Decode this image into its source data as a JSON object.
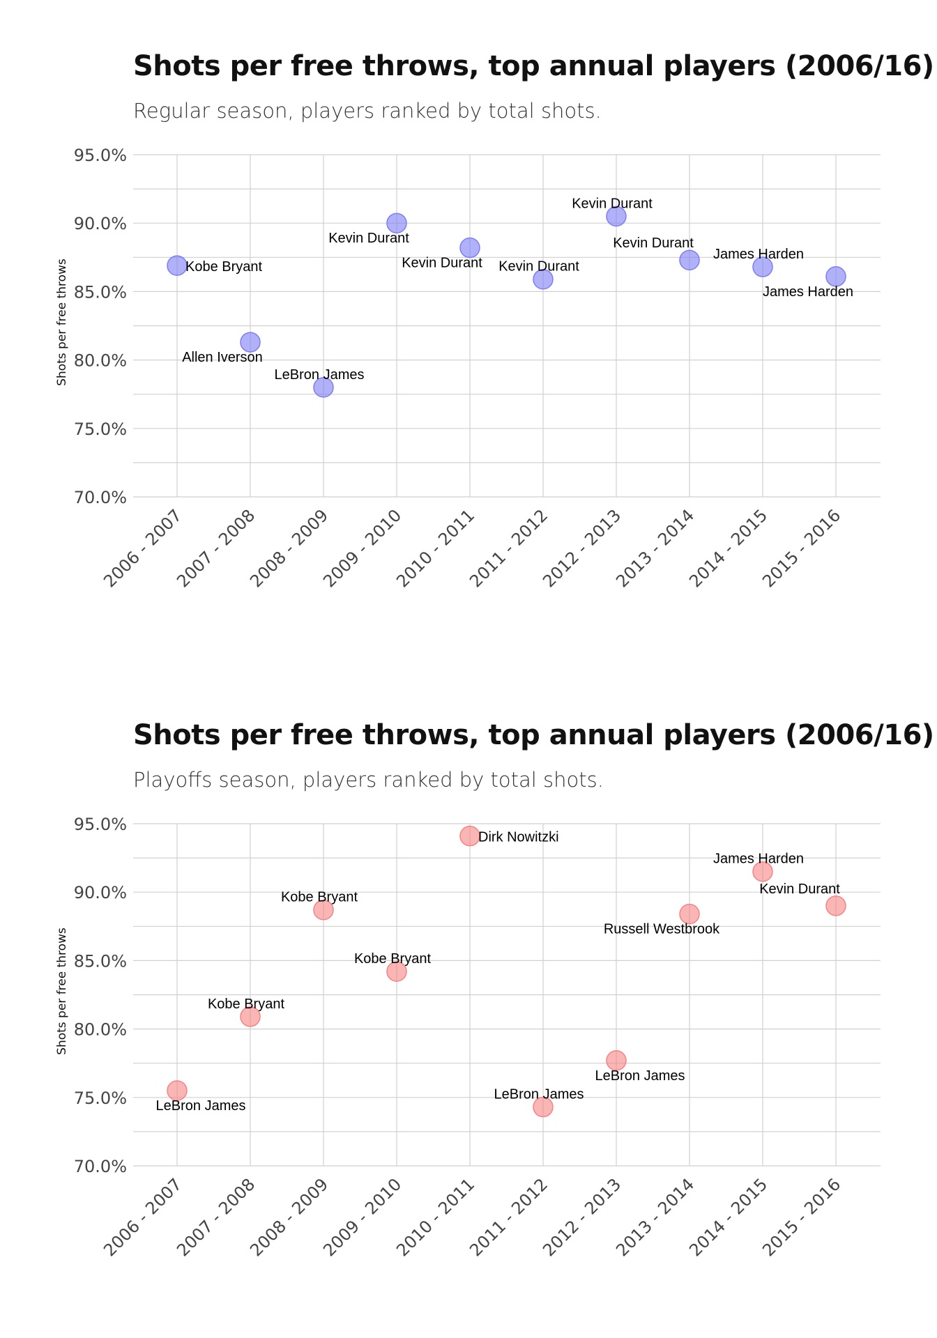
{
  "chart_data": [
    {
      "type": "scatter",
      "title": "Shots per free throws, top annual players (2006/16)",
      "subtitle": "Regular season, players ranked by total shots.",
      "xlabel": "",
      "ylabel": "Shots per free throws",
      "categories": [
        "2006 - 2007",
        "2007 - 2008",
        "2008 - 2009",
        "2009 - 2010",
        "2010 - 2011",
        "2011 - 2012",
        "2012 - 2013",
        "2013 - 2014",
        "2014 - 2015",
        "2015 - 2016"
      ],
      "values": [
        86.9,
        81.3,
        78.0,
        90.0,
        88.2,
        85.9,
        90.5,
        87.3,
        86.8,
        86.1
      ],
      "labels": [
        "Kobe Bryant",
        "Allen Iverson",
        "LeBron James",
        "Kevin Durant",
        "Kevin Durant",
        "Kevin Durant",
        "Kevin Durant",
        "Kevin Durant",
        "James Harden",
        "James Harden"
      ],
      "label_placement": [
        "right",
        "below-left",
        "above",
        "below-left",
        "below-left",
        "above",
        "above",
        "above-left",
        "above",
        "below-left"
      ],
      "ylim": [
        70,
        95
      ],
      "yticks": [
        "70.0%",
        "75.0%",
        "80.0%",
        "85.0%",
        "90.0%",
        "95.0%"
      ],
      "grid": true,
      "color": "#7d7df5"
    },
    {
      "type": "scatter",
      "title": "Shots per free throws, top annual players (2006/16)",
      "subtitle": "Playoffs season, players ranked by total shots.",
      "xlabel": "",
      "ylabel": "Shots per free throws",
      "categories": [
        "2006 - 2007",
        "2007 - 2008",
        "2008 - 2009",
        "2009 - 2010",
        "2010 - 2011",
        "2011 - 2012",
        "2012 - 2013",
        "2013 - 2014",
        "2014 - 2015",
        "2015 - 2016"
      ],
      "values": [
        75.5,
        80.9,
        88.7,
        84.2,
        94.1,
        74.3,
        77.7,
        88.4,
        91.5,
        89.0
      ],
      "labels": [
        "LeBron James",
        "Kobe Bryant",
        "Kobe Bryant",
        "Kobe Bryant",
        "Dirk Nowitzki",
        "LeBron James",
        "LeBron James",
        "Russell Westbrook",
        "James Harden",
        "Kevin Durant"
      ],
      "label_placement": [
        "below",
        "above",
        "above",
        "above",
        "right",
        "above",
        "below",
        "below-left",
        "above",
        "above-left"
      ],
      "ylim": [
        70,
        95
      ],
      "yticks": [
        "70.0%",
        "75.0%",
        "80.0%",
        "85.0%",
        "90.0%",
        "95.0%"
      ],
      "grid": true,
      "color": "#f78383"
    }
  ]
}
